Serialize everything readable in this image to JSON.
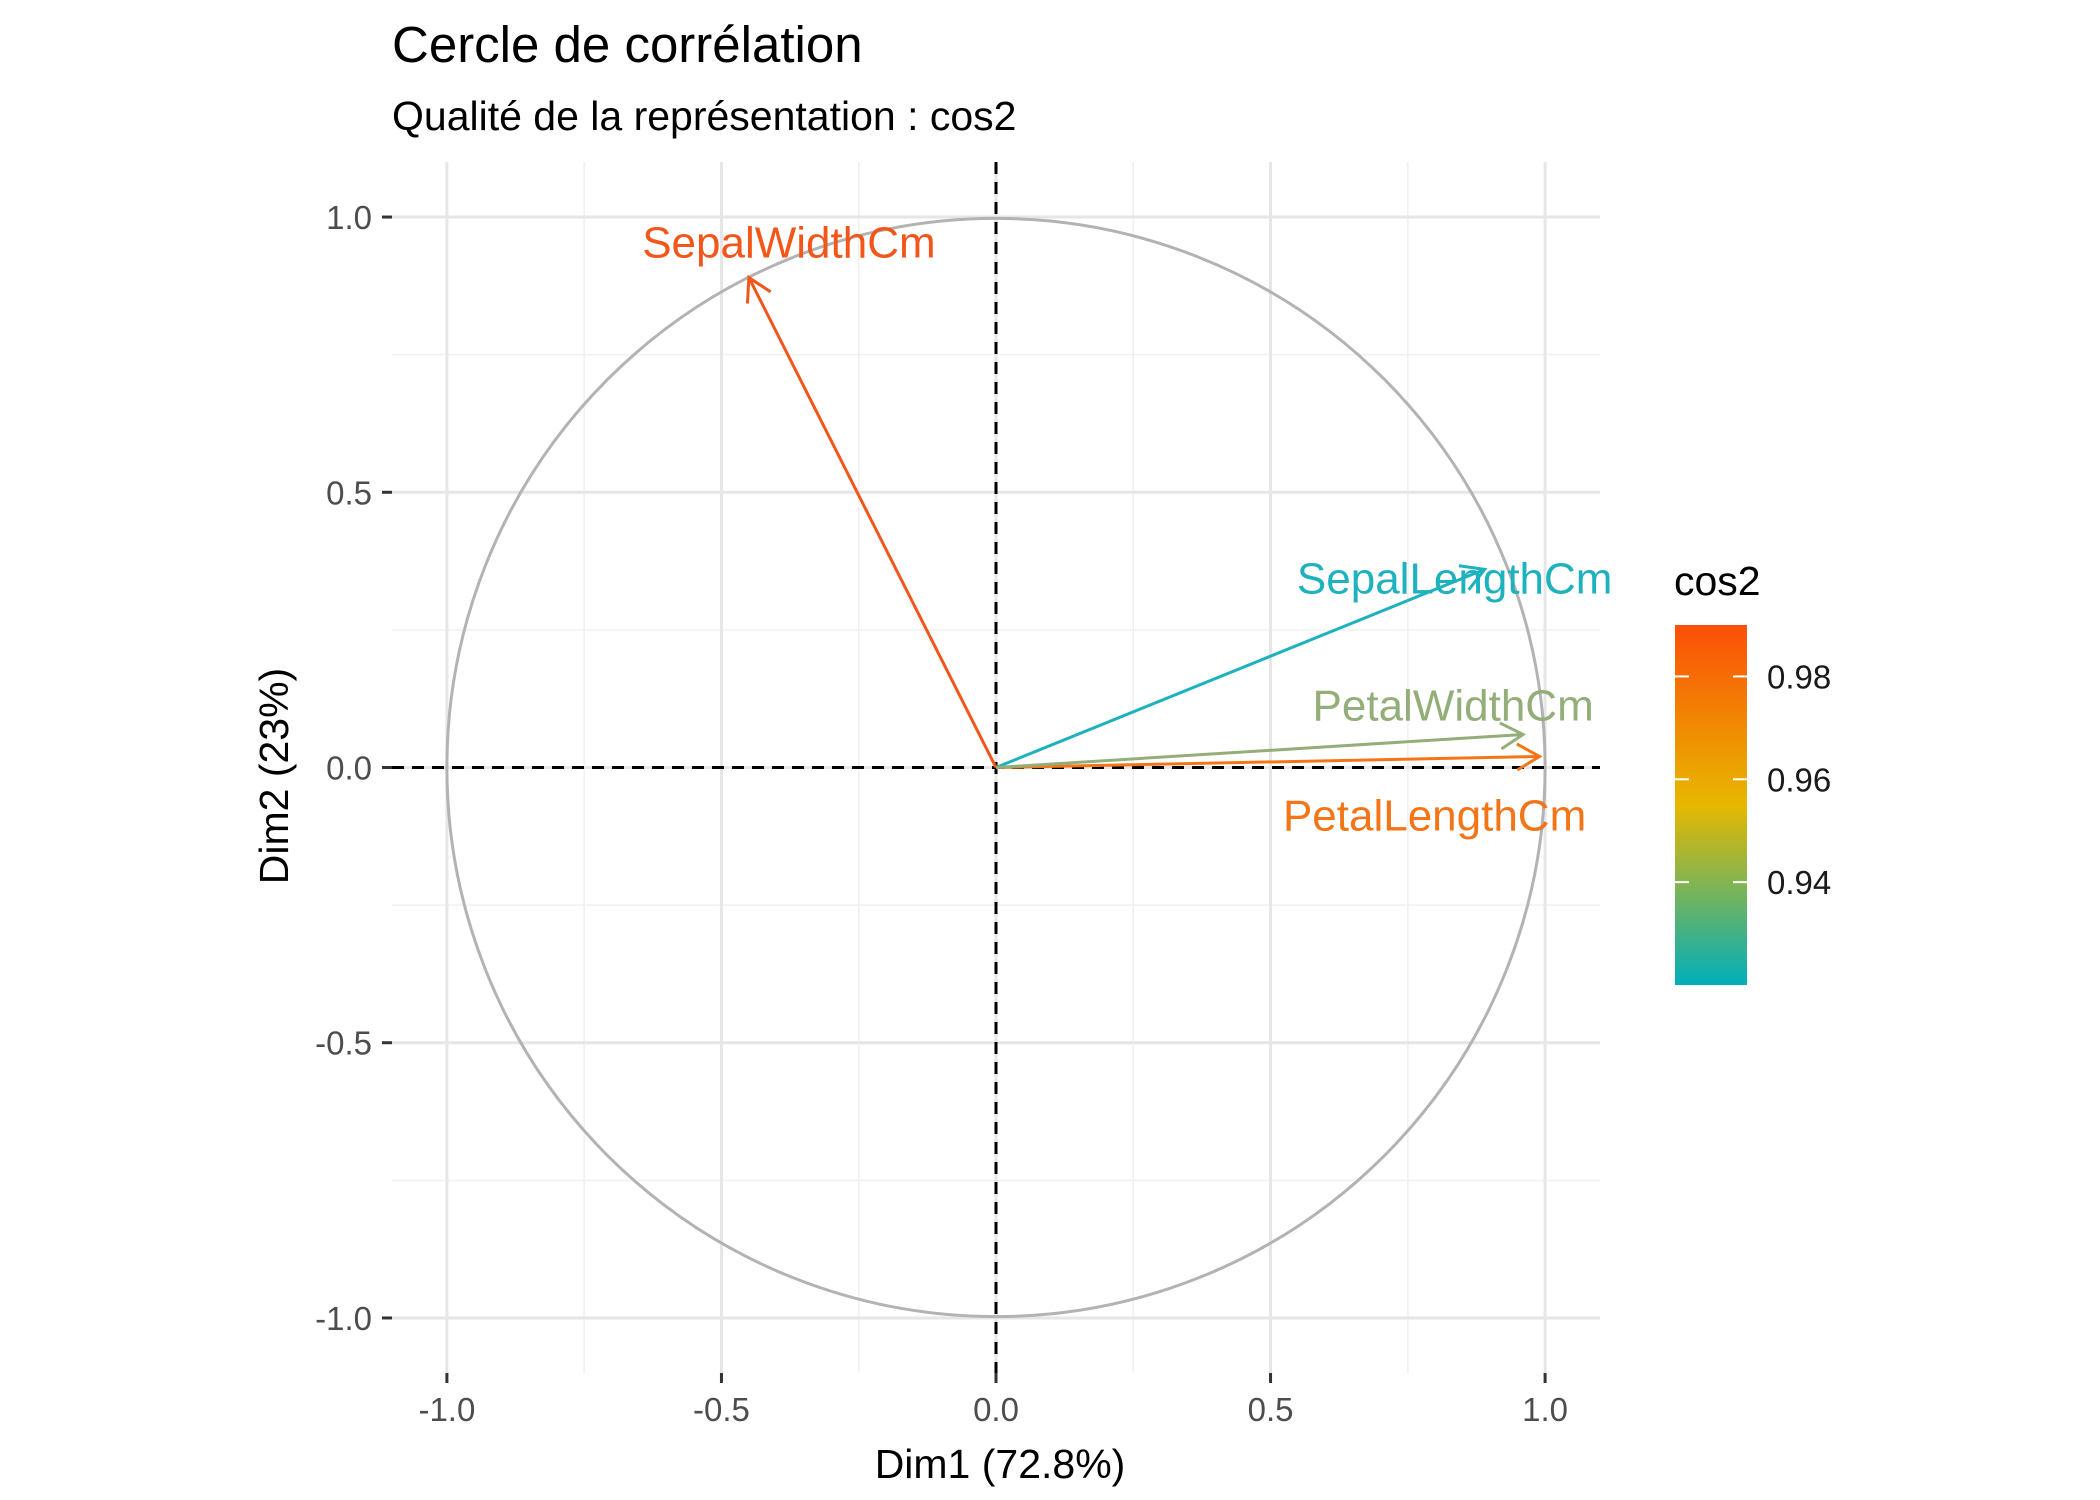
{
  "chart_data": {
    "type": "scatter",
    "title": "Cercle de corrélation",
    "subtitle": "Qualité de la représentation : cos2",
    "xlabel": "Dim1 (72.8%)",
    "ylabel": "Dim2 (23%)",
    "xlim": [
      -1.1,
      1.1
    ],
    "ylim": [
      -1.1,
      1.1
    ],
    "xticks": [
      -1.0,
      -0.5,
      0.0,
      0.5,
      1.0
    ],
    "yticks": [
      -1.0,
      -0.5,
      0.0,
      0.5,
      1.0
    ],
    "xtick_labels": [
      "-1.0",
      "-0.5",
      "0.0",
      "0.5",
      "1.0"
    ],
    "ytick_labels": [
      "-1.0",
      "-0.5",
      "0.0",
      "0.5",
      "1.0"
    ],
    "grid": true,
    "unit_circle": true,
    "reference_lines": "dashed lines at x = 0 and y = 0",
    "variables": [
      {
        "name": "SepalLengthCm",
        "x": 0.89,
        "y": 0.36,
        "cos2": 0.92,
        "color": "#1EB1BE"
      },
      {
        "name": "SepalWidthCm",
        "x": -0.45,
        "y": 0.89,
        "cos2": 0.99,
        "color": "#F2561A"
      },
      {
        "name": "PetalLengthCm",
        "x": 0.99,
        "y": 0.02,
        "cos2": 0.98,
        "color": "#F47518"
      },
      {
        "name": "PetalWidthCm",
        "x": 0.96,
        "y": 0.06,
        "cos2": 0.94,
        "color": "#94AE79"
      }
    ],
    "legend": {
      "title": "cos2",
      "position": "right",
      "range": [
        0.92,
        0.99
      ],
      "ticks": [
        0.94,
        0.96,
        0.98
      ],
      "tick_labels": [
        "0.94",
        "0.96",
        "0.98"
      ],
      "gradient": [
        "#00AFBB",
        "#E7B800",
        "#FC4E07"
      ]
    }
  }
}
